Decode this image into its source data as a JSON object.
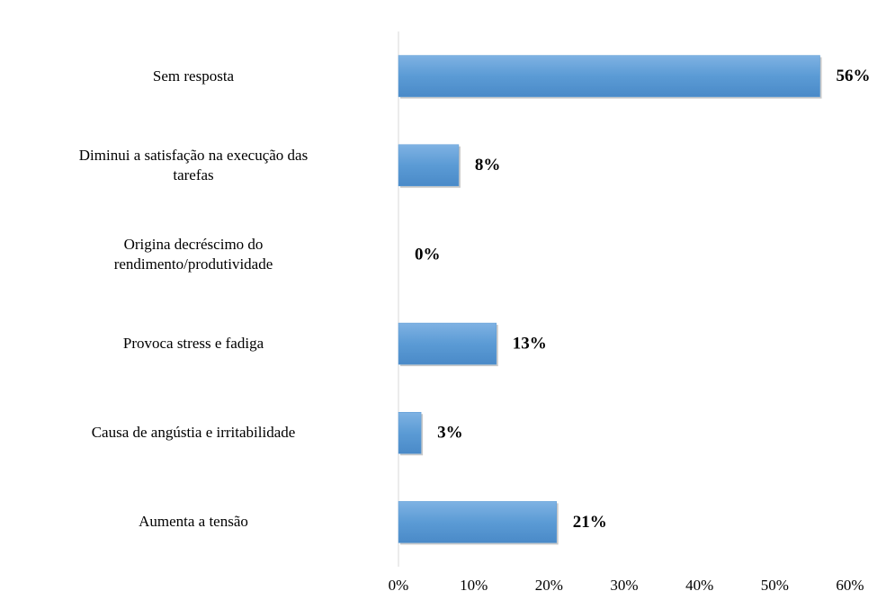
{
  "chart_data": {
    "type": "bar",
    "orientation": "horizontal",
    "categories": [
      "Sem resposta",
      "Diminui a satisfação na execução das\ntarefas",
      "Origina decréscimo do\nrendimento/produtividade",
      "Provoca stress e fadiga",
      "Causa de angústia e irritabilidade",
      "Aumenta a tensão"
    ],
    "values": [
      56,
      8,
      0,
      13,
      3,
      21
    ],
    "value_labels": [
      "56%",
      "8%",
      "0%",
      "13%",
      "3%",
      "21%"
    ],
    "color": "#5b9bd5",
    "xlim": [
      0,
      60
    ],
    "xticks": [
      {
        "value": 0,
        "label": "0%"
      },
      {
        "value": 10,
        "label": "10%"
      },
      {
        "value": 20,
        "label": "20%"
      },
      {
        "value": 30,
        "label": "30%"
      },
      {
        "value": 40,
        "label": "40%"
      },
      {
        "value": 50,
        "label": "50%"
      },
      {
        "value": 60,
        "label": "60%"
      }
    ],
    "grid": false
  }
}
